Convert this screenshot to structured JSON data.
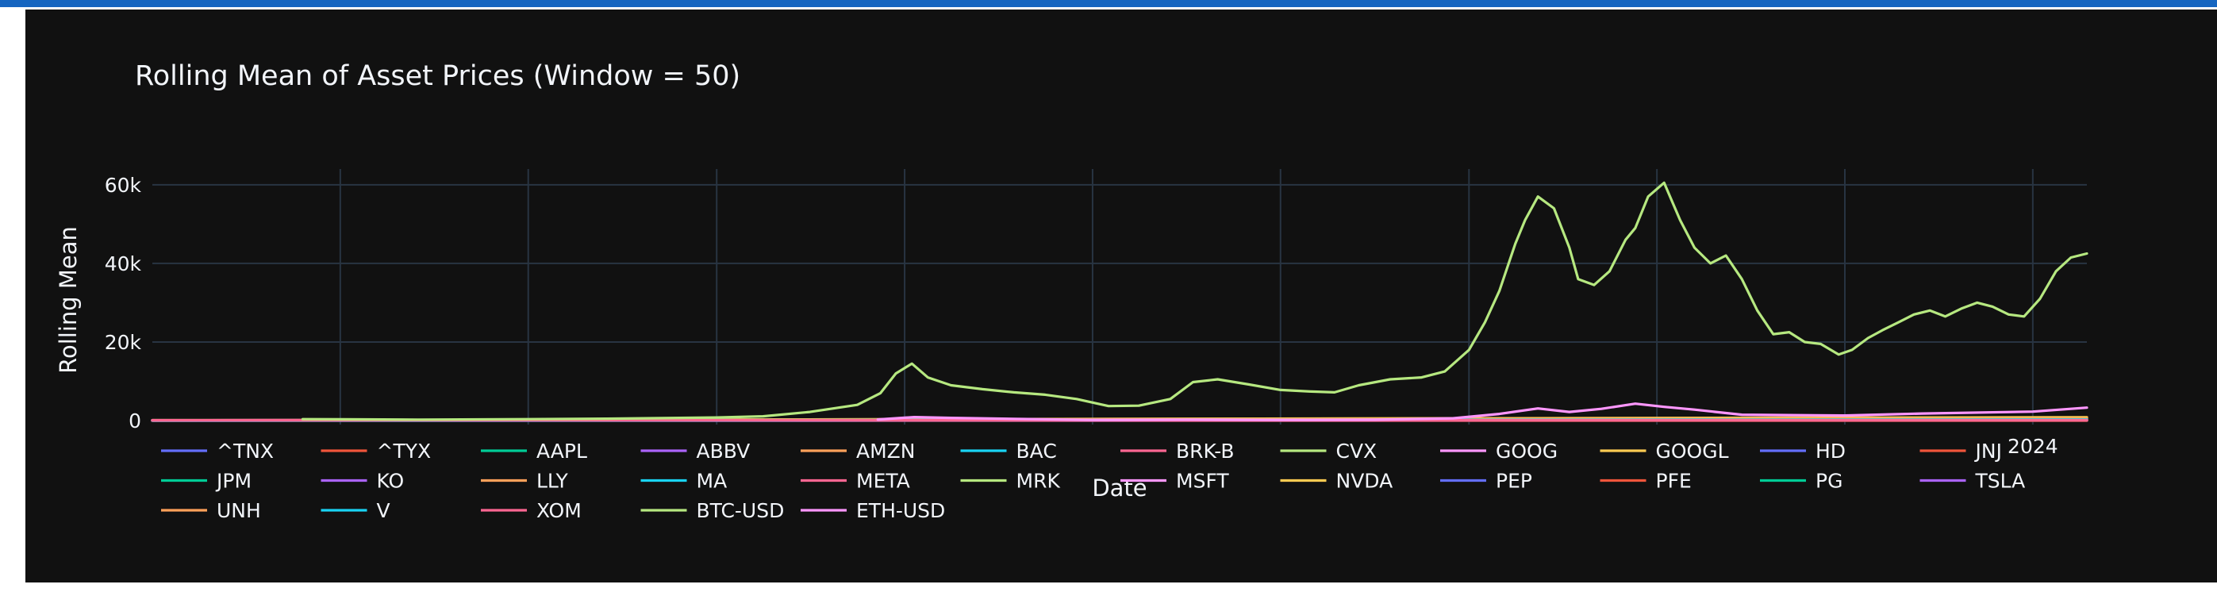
{
  "chart_data": {
    "type": "line",
    "title": "Rolling Mean of Asset Prices (Window = 50)",
    "xlabel": "Date",
    "ylabel": "Rolling Mean",
    "y_ticks": [
      {
        "value": 0,
        "label": "0"
      },
      {
        "value": 20000,
        "label": "20k"
      },
      {
        "value": 40000,
        "label": "40k"
      },
      {
        "value": 60000,
        "label": "60k"
      }
    ],
    "x_ticks": [
      {
        "value": "2024-01-01",
        "label": "2024"
      }
    ],
    "x_range": [
      "2014-01-01",
      "2024-04-15"
    ],
    "ylim": [
      -1000,
      64000
    ],
    "grid": true,
    "legend_position": "bottom",
    "colors": {
      "background": "#111111",
      "grid": "#283442",
      "text": "#f2f5fa"
    },
    "series": [
      {
        "name": "^TNX",
        "color": "#636efa",
        "x": [
          "2014-01-01",
          "2024-04-15"
        ],
        "values": [
          0,
          0
        ]
      },
      {
        "name": "^TYX",
        "color": "#EF553B",
        "x": [
          "2014-01-01",
          "2024-04-15"
        ],
        "values": [
          0,
          0
        ]
      },
      {
        "name": "AAPL",
        "color": "#00cc96",
        "x": [
          "2014-01-01",
          "2024-04-15"
        ],
        "values": [
          30,
          180
        ]
      },
      {
        "name": "ABBV",
        "color": "#ab63fa",
        "x": [
          "2014-01-01",
          "2024-04-15"
        ],
        "values": [
          60,
          170
        ]
      },
      {
        "name": "AMZN",
        "color": "#FFA15A",
        "x": [
          "2014-01-01",
          "2024-04-15"
        ],
        "values": [
          20,
          180
        ]
      },
      {
        "name": "BAC",
        "color": "#19d3f3",
        "x": [
          "2014-01-01",
          "2024-04-15"
        ],
        "values": [
          15,
          35
        ]
      },
      {
        "name": "BRK-B",
        "color": "#FF6692",
        "x": [
          "2014-01-01",
          "2024-04-15"
        ],
        "values": [
          120,
          410
        ]
      },
      {
        "name": "CVX",
        "color": "#B6E880",
        "x": [
          "2014-01-01",
          "2024-04-15"
        ],
        "values": [
          110,
          160
        ]
      },
      {
        "name": "GOOG",
        "color": "#FF97FF",
        "x": [
          "2014-01-01",
          "2024-04-15"
        ],
        "values": [
          28,
          155
        ]
      },
      {
        "name": "GOOGL",
        "color": "#FECB52",
        "x": [
          "2014-01-01",
          "2024-04-15"
        ],
        "values": [
          28,
          155
        ]
      },
      {
        "name": "HD",
        "color": "#636efa",
        "x": [
          "2014-01-01",
          "2024-04-15"
        ],
        "values": [
          80,
          380
        ]
      },
      {
        "name": "JNJ",
        "color": "#EF553B",
        "x": [
          "2014-01-01",
          "2024-04-15"
        ],
        "values": [
          90,
          160
        ]
      },
      {
        "name": "JPM",
        "color": "#00cc96",
        "x": [
          "2014-01-01",
          "2024-04-15"
        ],
        "values": [
          55,
          195
        ]
      },
      {
        "name": "KO",
        "color": "#ab63fa",
        "x": [
          "2014-01-01",
          "2024-04-15"
        ],
        "values": [
          40,
          60
        ]
      },
      {
        "name": "LLY",
        "color": "#FFA15A",
        "x": [
          "2014-01-01",
          "2024-04-15"
        ],
        "values": [
          55,
          770
        ]
      },
      {
        "name": "MA",
        "color": "#19d3f3",
        "x": [
          "2014-01-01",
          "2024-04-15"
        ],
        "values": [
          75,
          470
        ]
      },
      {
        "name": "META",
        "color": "#FF6692",
        "x": [
          "2014-01-01",
          "2024-04-15"
        ],
        "values": [
          60,
          500
        ]
      },
      {
        "name": "MRK",
        "color": "#B6E880",
        "x": [
          "2014-01-01",
          "2024-04-15"
        ],
        "values": [
          55,
          125
        ]
      },
      {
        "name": "MSFT",
        "color": "#FF97FF",
        "x": [
          "2014-01-01",
          "2015-01-01",
          "2016-01-01",
          "2017-01-01",
          "2018-01-01",
          "2019-01-01",
          "2020-01-01",
          "2021-01-01",
          "2022-01-01",
          "2023-01-01",
          "2024-04-15"
        ],
        "values": [
          37,
          45,
          52,
          62,
          85,
          105,
          160,
          230,
          310,
          250,
          420
        ]
      },
      {
        "name": "NVDA",
        "color": "#FECB52",
        "x": [
          "2014-01-01",
          "2024-04-15"
        ],
        "values": [
          5,
          850
        ]
      },
      {
        "name": "PEP",
        "color": "#636efa",
        "x": [
          "2014-01-01",
          "2024-04-15"
        ],
        "values": [
          85,
          170
        ]
      },
      {
        "name": "PFE",
        "color": "#EF553B",
        "x": [
          "2014-01-01",
          "2024-04-15"
        ],
        "values": [
          30,
          28
        ]
      },
      {
        "name": "PG",
        "color": "#00cc96",
        "x": [
          "2014-01-01",
          "2024-04-15"
        ],
        "values": [
          80,
          160
        ]
      },
      {
        "name": "TSLA",
        "color": "#ab63fa",
        "x": [
          "2014-01-01",
          "2024-04-15"
        ],
        "values": [
          15,
          180
        ]
      },
      {
        "name": "UNH",
        "color": "#FFA15A",
        "x": [
          "2014-01-01",
          "2024-04-15"
        ],
        "values": [
          60,
          500
        ]
      },
      {
        "name": "V",
        "color": "#19d3f3",
        "x": [
          "2014-01-01",
          "2024-04-15"
        ],
        "values": [
          50,
          280
        ]
      },
      {
        "name": "XOM",
        "color": "#FF6692",
        "x": [
          "2014-01-01",
          "2024-04-15"
        ],
        "values": [
          95,
          115
        ]
      },
      {
        "name": "BTC-USD",
        "color": "#B6E880",
        "x": [
          "2014-10-20",
          "2015-01-01",
          "2015-06-01",
          "2016-01-01",
          "2016-06-01",
          "2017-01-01",
          "2017-04-01",
          "2017-07-01",
          "2017-10-01",
          "2017-11-15",
          "2017-12-15",
          "2018-01-15",
          "2018-02-15",
          "2018-04-01",
          "2018-06-01",
          "2018-08-01",
          "2018-10-01",
          "2018-12-01",
          "2019-02-01",
          "2019-04-01",
          "2019-06-01",
          "2019-07-15",
          "2019-09-01",
          "2019-11-01",
          "2020-01-01",
          "2020-03-01",
          "2020-04-15",
          "2020-06-01",
          "2020-08-01",
          "2020-10-01",
          "2020-11-15",
          "2021-01-01",
          "2021-02-01",
          "2021-03-01",
          "2021-04-01",
          "2021-04-20",
          "2021-05-15",
          "2021-06-15",
          "2021-07-15",
          "2021-08-01",
          "2021-09-01",
          "2021-10-01",
          "2021-11-01",
          "2021-11-20",
          "2021-12-15",
          "2022-01-15",
          "2022-02-15",
          "2022-03-15",
          "2022-04-15",
          "2022-05-15",
          "2022-06-15",
          "2022-07-15",
          "2022-08-15",
          "2022-09-15",
          "2022-10-15",
          "2022-11-15",
          "2022-12-20",
          "2023-01-15",
          "2023-02-15",
          "2023-03-15",
          "2023-04-15",
          "2023-05-15",
          "2023-06-15",
          "2023-07-15",
          "2023-08-15",
          "2023-09-15",
          "2023-10-15",
          "2023-11-15",
          "2023-12-15",
          "2024-01-15",
          "2024-02-15",
          "2024-03-15",
          "2024-04-15"
        ],
        "values": [
          380,
          330,
          250,
          380,
          500,
          800,
          1100,
          2200,
          4000,
          7000,
          12000,
          14500,
          11000,
          9000,
          8000,
          7200,
          6600,
          5500,
          3700,
          3800,
          5500,
          9800,
          10500,
          9200,
          7800,
          7400,
          7200,
          9000,
          10500,
          11000,
          12500,
          18000,
          25000,
          33000,
          45000,
          51000,
          57000,
          54000,
          44000,
          36000,
          34500,
          38000,
          46000,
          49000,
          57000,
          60500,
          51000,
          44000,
          40000,
          42000,
          36000,
          28000,
          22000,
          22500,
          20000,
          19500,
          16800,
          18000,
          21000,
          23000,
          25000,
          27000,
          28000,
          26500,
          28500,
          30000,
          29000,
          27000,
          26500,
          31000,
          38000,
          41500,
          42500
        ]
      },
      {
        "name": "ETH-USD",
        "color": "#FF97FF",
        "x": [
          "2017-11-10",
          "2018-01-20",
          "2018-04-01",
          "2018-08-01",
          "2019-01-01",
          "2019-07-01",
          "2020-01-01",
          "2020-07-01",
          "2020-12-01",
          "2021-03-01",
          "2021-05-15",
          "2021-07-15",
          "2021-09-15",
          "2021-11-20",
          "2022-01-15",
          "2022-03-15",
          "2022-06-15",
          "2022-09-15",
          "2023-01-01",
          "2023-06-01",
          "2024-01-01",
          "2024-04-15"
        ],
        "values": [
          300,
          900,
          700,
          450,
          180,
          250,
          170,
          230,
          600,
          1700,
          3100,
          2200,
          3000,
          4300,
          3500,
          2800,
          1500,
          1400,
          1300,
          1800,
          2300,
          3300
        ]
      }
    ]
  }
}
